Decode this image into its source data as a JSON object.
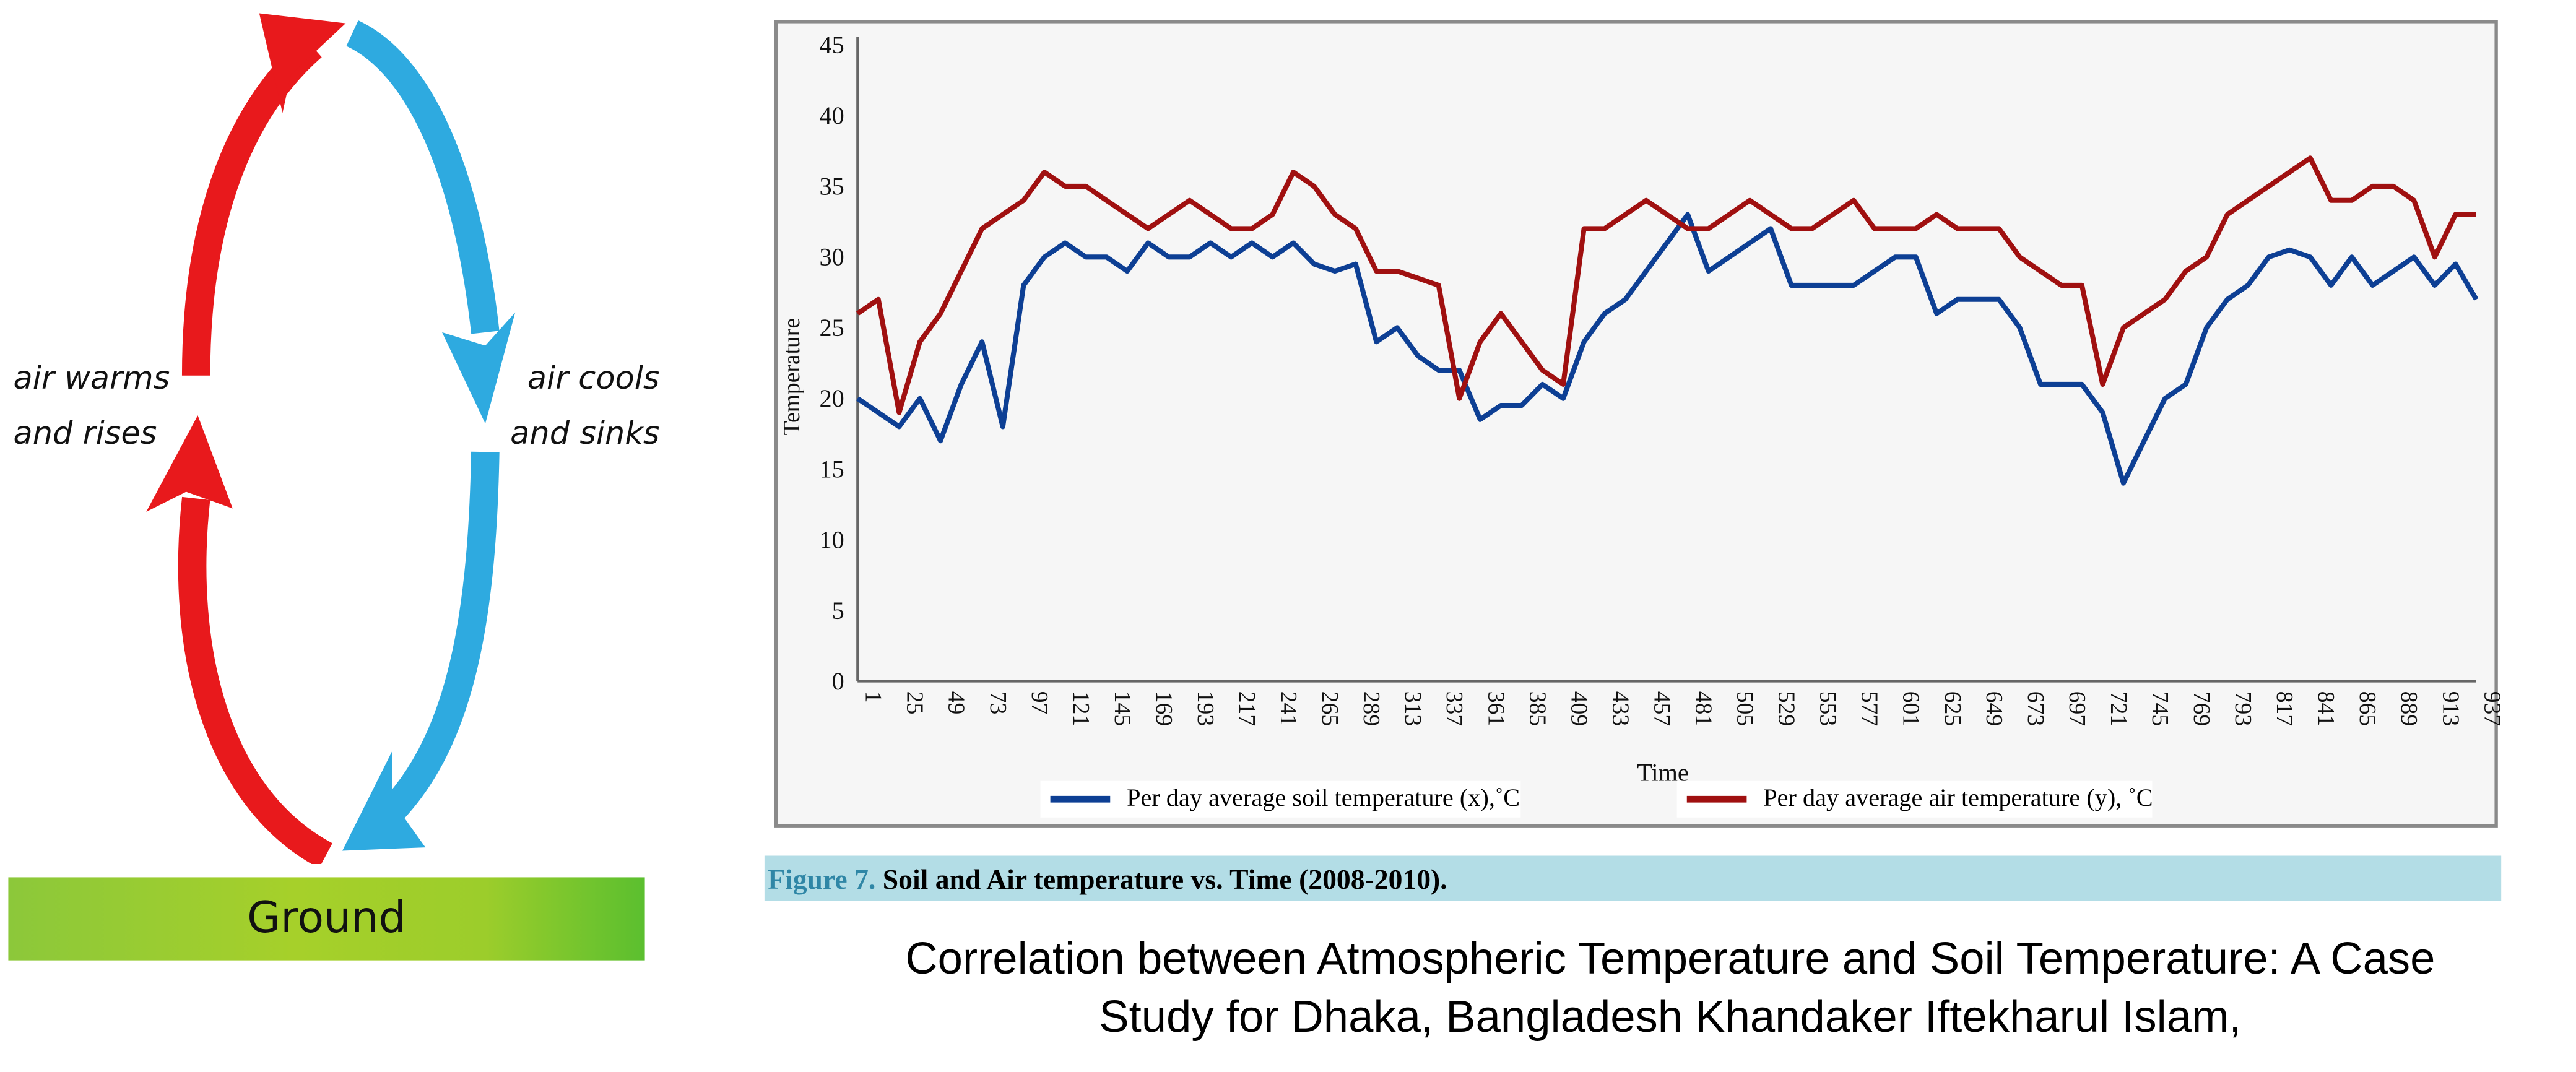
{
  "diagram": {
    "left_label": [
      "air warms",
      "and rises"
    ],
    "right_label": [
      "air cools",
      "and sinks"
    ],
    "ground_label": "Ground",
    "colors": {
      "warm": "#e8191c",
      "cool": "#2eaae0",
      "ground": "#9ccd2b"
    }
  },
  "chart_data": {
    "type": "line",
    "title": "",
    "xlabel": "Time",
    "ylabel": "Temperature",
    "ylim": [
      0,
      45
    ],
    "yticks": [
      0,
      5,
      10,
      15,
      20,
      25,
      30,
      35,
      40,
      45
    ],
    "xlim": [
      1,
      937
    ],
    "xticks": [
      1,
      25,
      49,
      73,
      97,
      121,
      145,
      169,
      193,
      217,
      241,
      265,
      289,
      313,
      337,
      361,
      385,
      409,
      433,
      457,
      481,
      505,
      529,
      553,
      577,
      601,
      625,
      649,
      673,
      697,
      721,
      745,
      769,
      793,
      817,
      841,
      865,
      889,
      913,
      937
    ],
    "grid": false,
    "legend": "bottom",
    "x": [
      1,
      13,
      25,
      37,
      49,
      61,
      73,
      85,
      97,
      109,
      121,
      133,
      145,
      157,
      169,
      181,
      193,
      205,
      217,
      229,
      241,
      253,
      265,
      277,
      289,
      301,
      313,
      325,
      337,
      349,
      361,
      373,
      385,
      397,
      409,
      421,
      433,
      445,
      457,
      469,
      481,
      493,
      505,
      517,
      529,
      541,
      553,
      565,
      577,
      589,
      601,
      613,
      625,
      637,
      649,
      661,
      673,
      685,
      697,
      709,
      721,
      733,
      745,
      757,
      769,
      781,
      793,
      805,
      817,
      829,
      841,
      853,
      865,
      877,
      889,
      901,
      913,
      925,
      937
    ],
    "series": [
      {
        "name": "Per day average soil temperature (x),˚C",
        "color": "#0d3f94",
        "values": [
          20,
          19,
          18,
          20,
          17,
          21,
          24,
          18,
          28,
          30,
          31,
          30,
          30,
          29,
          31,
          30,
          30,
          31,
          30,
          31,
          30,
          31,
          29.5,
          29,
          29.5,
          24,
          25,
          23,
          22,
          22,
          18.5,
          19.5,
          19.5,
          21,
          20,
          24,
          26,
          27,
          29,
          31,
          33,
          29,
          30,
          31,
          32,
          28,
          28,
          28,
          28,
          29,
          30,
          30,
          26,
          27,
          27,
          27,
          25,
          21,
          21,
          21,
          19,
          14,
          17,
          20,
          21,
          25,
          27,
          28,
          30,
          30.5,
          30,
          28,
          30,
          28,
          29,
          30,
          28,
          29.5,
          27
        ]
      },
      {
        "name": "Per day average air temperature (y), ˚C",
        "color": "#a01010",
        "values": [
          26,
          27,
          19,
          24,
          26,
          29,
          32,
          33,
          34,
          36,
          35,
          35,
          34,
          33,
          32,
          33,
          34,
          33,
          32,
          32,
          33,
          36,
          35,
          33,
          32,
          29,
          29,
          28.5,
          28,
          20,
          24,
          26,
          24,
          22,
          21,
          32,
          32,
          33,
          34,
          33,
          32,
          32,
          33,
          34,
          33,
          32,
          32,
          33,
          34,
          32,
          32,
          32,
          33,
          32,
          32,
          32,
          30,
          29,
          28,
          28,
          21,
          25,
          26,
          27,
          29,
          30,
          33,
          34,
          35,
          36,
          37,
          34,
          34,
          35,
          35,
          34,
          30,
          33,
          33
        ]
      }
    ]
  },
  "caption": {
    "figure_label": "Figure 7.",
    "text": " Soil and Air temperature vs. Time (2008-2010).",
    "bar_color": "#b3dde6"
  },
  "citation": [
    "Correlation between Atmospheric Temperature and Soil Temperature: A Case",
    "Study for Dhaka, Bangladesh Khandaker Iftekharul Islam,"
  ]
}
